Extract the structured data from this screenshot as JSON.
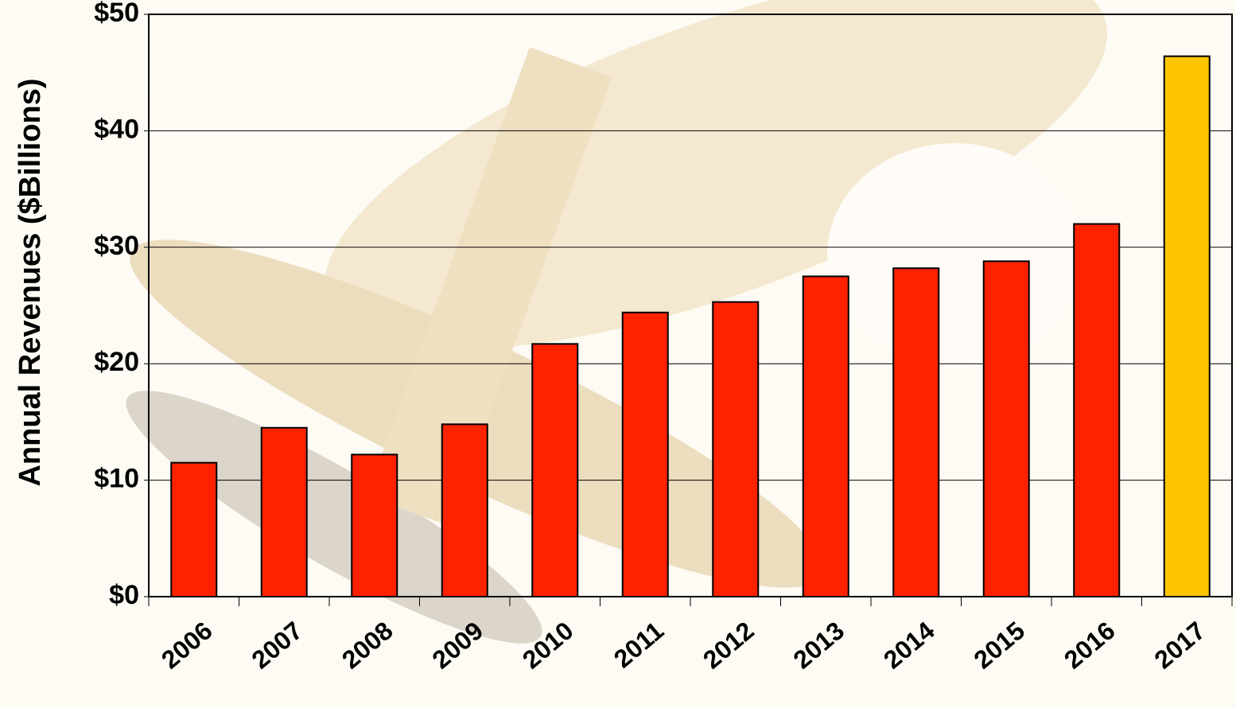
{
  "chart_data": {
    "type": "bar",
    "y_label": "Annual Revenues ($Billions)",
    "categories": [
      "2006",
      "2007",
      "2008",
      "2009",
      "2010",
      "2011",
      "2012",
      "2013",
      "2014",
      "2015",
      "2016",
      "2017"
    ],
    "values": [
      11.5,
      14.5,
      12.2,
      14.8,
      21.7,
      24.4,
      25.3,
      27.5,
      28.2,
      28.8,
      32.0,
      46.4
    ],
    "colors": [
      "#ff2200",
      "#ff2200",
      "#ff2200",
      "#ff2200",
      "#ff2200",
      "#ff2200",
      "#ff2200",
      "#ff2200",
      "#ff2200",
      "#ff2200",
      "#ff2200",
      "#ffc400"
    ],
    "ylim": [
      0,
      50
    ],
    "yticks": [
      {
        "value": 0,
        "label": "$0"
      },
      {
        "value": 10,
        "label": "$10"
      },
      {
        "value": 20,
        "label": "$20"
      },
      {
        "value": 30,
        "label": "$30"
      },
      {
        "value": 40,
        "label": "$40"
      },
      {
        "value": 50,
        "label": "$50"
      }
    ],
    "grid": true
  }
}
